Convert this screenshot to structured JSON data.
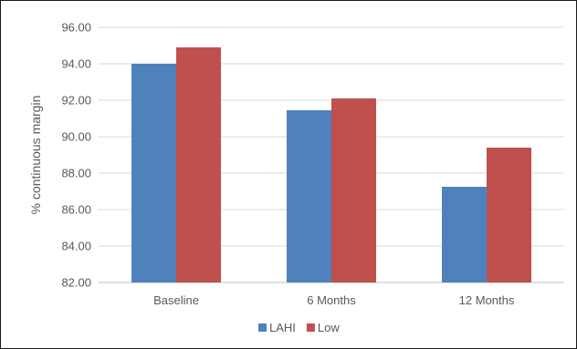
{
  "chart_data": {
    "type": "bar",
    "title": "",
    "xlabel": "",
    "ylabel": "% continuous margin",
    "categories": [
      "Baseline",
      "6 Months",
      "12 Months"
    ],
    "series": [
      {
        "name": "LAHI",
        "values": [
          94.0,
          91.45,
          87.25
        ]
      },
      {
        "name": "Low",
        "values": [
          94.9,
          92.1,
          89.4
        ]
      }
    ],
    "ylim": [
      82.0,
      96.0
    ],
    "yticks": [
      "82.00",
      "84.00",
      "86.00",
      "88.00",
      "90.00",
      "92.00",
      "94.00",
      "96.00"
    ],
    "grid": true,
    "legend": "bottom"
  },
  "colors": {
    "series": [
      "#4f81bd",
      "#c0504d"
    ],
    "grid": "#d9d9d9",
    "axis": "#bfbfbf"
  }
}
